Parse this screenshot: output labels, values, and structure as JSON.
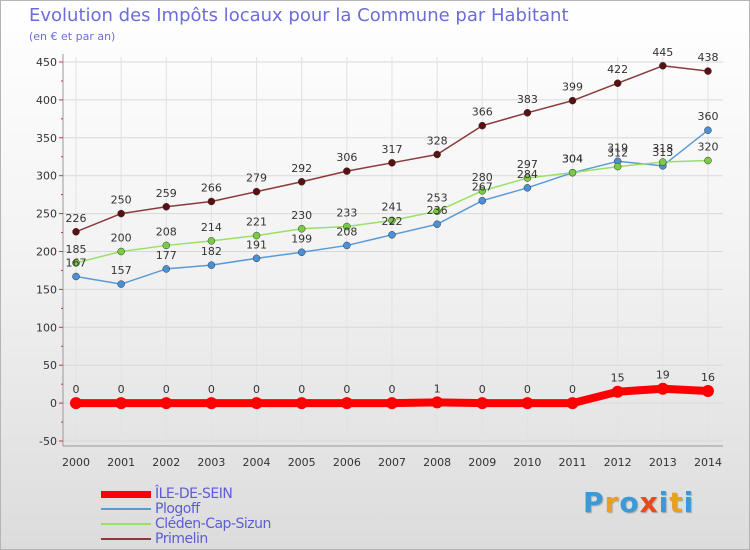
{
  "chart_data": {
    "type": "line",
    "title": "Evolution des Impôts locaux pour la Commune par Habitant",
    "subtitle": "(en € et par an)",
    "categories": [
      "2000",
      "2001",
      "2002",
      "2003",
      "2004",
      "2005",
      "2006",
      "2007",
      "2008",
      "2009",
      "2010",
      "2011",
      "2012",
      "2013",
      "2014"
    ],
    "ylim": [
      -50,
      450
    ],
    "yticks": [
      450,
      400,
      350,
      300,
      250,
      200,
      150,
      100,
      50,
      0,
      -50
    ],
    "grid": true,
    "legend_position": "bottom-left",
    "series": [
      {
        "name": "ÎLE-DE-SEIN",
        "color": "#ff0000",
        "marker_color": "#ff0000",
        "values": [
          0,
          0,
          0,
          0,
          0,
          0,
          0,
          0,
          1,
          0,
          0,
          0,
          15,
          19,
          16
        ],
        "labels": [
          "0",
          "0",
          "0",
          "0",
          "0",
          "0",
          "0",
          "0",
          "1",
          "0",
          "0",
          "0",
          "15",
          "19",
          "16"
        ]
      },
      {
        "name": "Plogoff",
        "color": "#5b9bd5",
        "marker_color": "#4a90d9",
        "values": [
          167,
          157,
          177,
          182,
          191,
          199,
          208,
          222,
          236,
          267,
          284,
          304,
          319,
          313,
          360
        ],
        "labels": [
          "167",
          "157",
          "177",
          "182",
          "191",
          "199",
          "208",
          "222",
          "236",
          "267",
          "284",
          "304",
          "319",
          "313",
          "360"
        ]
      },
      {
        "name": "Cléden-Cap-Sizun",
        "color": "#99e066",
        "marker_color": "#7acc44",
        "values": [
          185,
          200,
          208,
          214,
          221,
          230,
          233,
          241,
          253,
          280,
          297,
          304,
          312,
          318,
          320
        ],
        "labels": [
          "185",
          "200",
          "208",
          "214",
          "221",
          "230",
          "233",
          "241",
          "253",
          "280",
          "297",
          "304",
          "312",
          "318",
          "320"
        ]
      },
      {
        "name": "Primelin",
        "color": "#8b3a3a",
        "marker_color": "#5a1010",
        "values": [
          226,
          250,
          259,
          266,
          279,
          292,
          306,
          317,
          328,
          366,
          383,
          399,
          422,
          445,
          438
        ],
        "labels": [
          "226",
          "250",
          "259",
          "266",
          "279",
          "292",
          "306",
          "317",
          "328",
          "366",
          "383",
          "399",
          "422",
          "445",
          "438"
        ]
      }
    ]
  },
  "brand": {
    "letters": [
      "P",
      "r",
      "o",
      "x",
      "i",
      "t",
      "i"
    ],
    "colors": [
      "#3a9ad9",
      "#e8a020",
      "#3a9ad9",
      "#e84a20",
      "#3a9ad9",
      "#e8a020",
      "#3a9ad9"
    ]
  }
}
